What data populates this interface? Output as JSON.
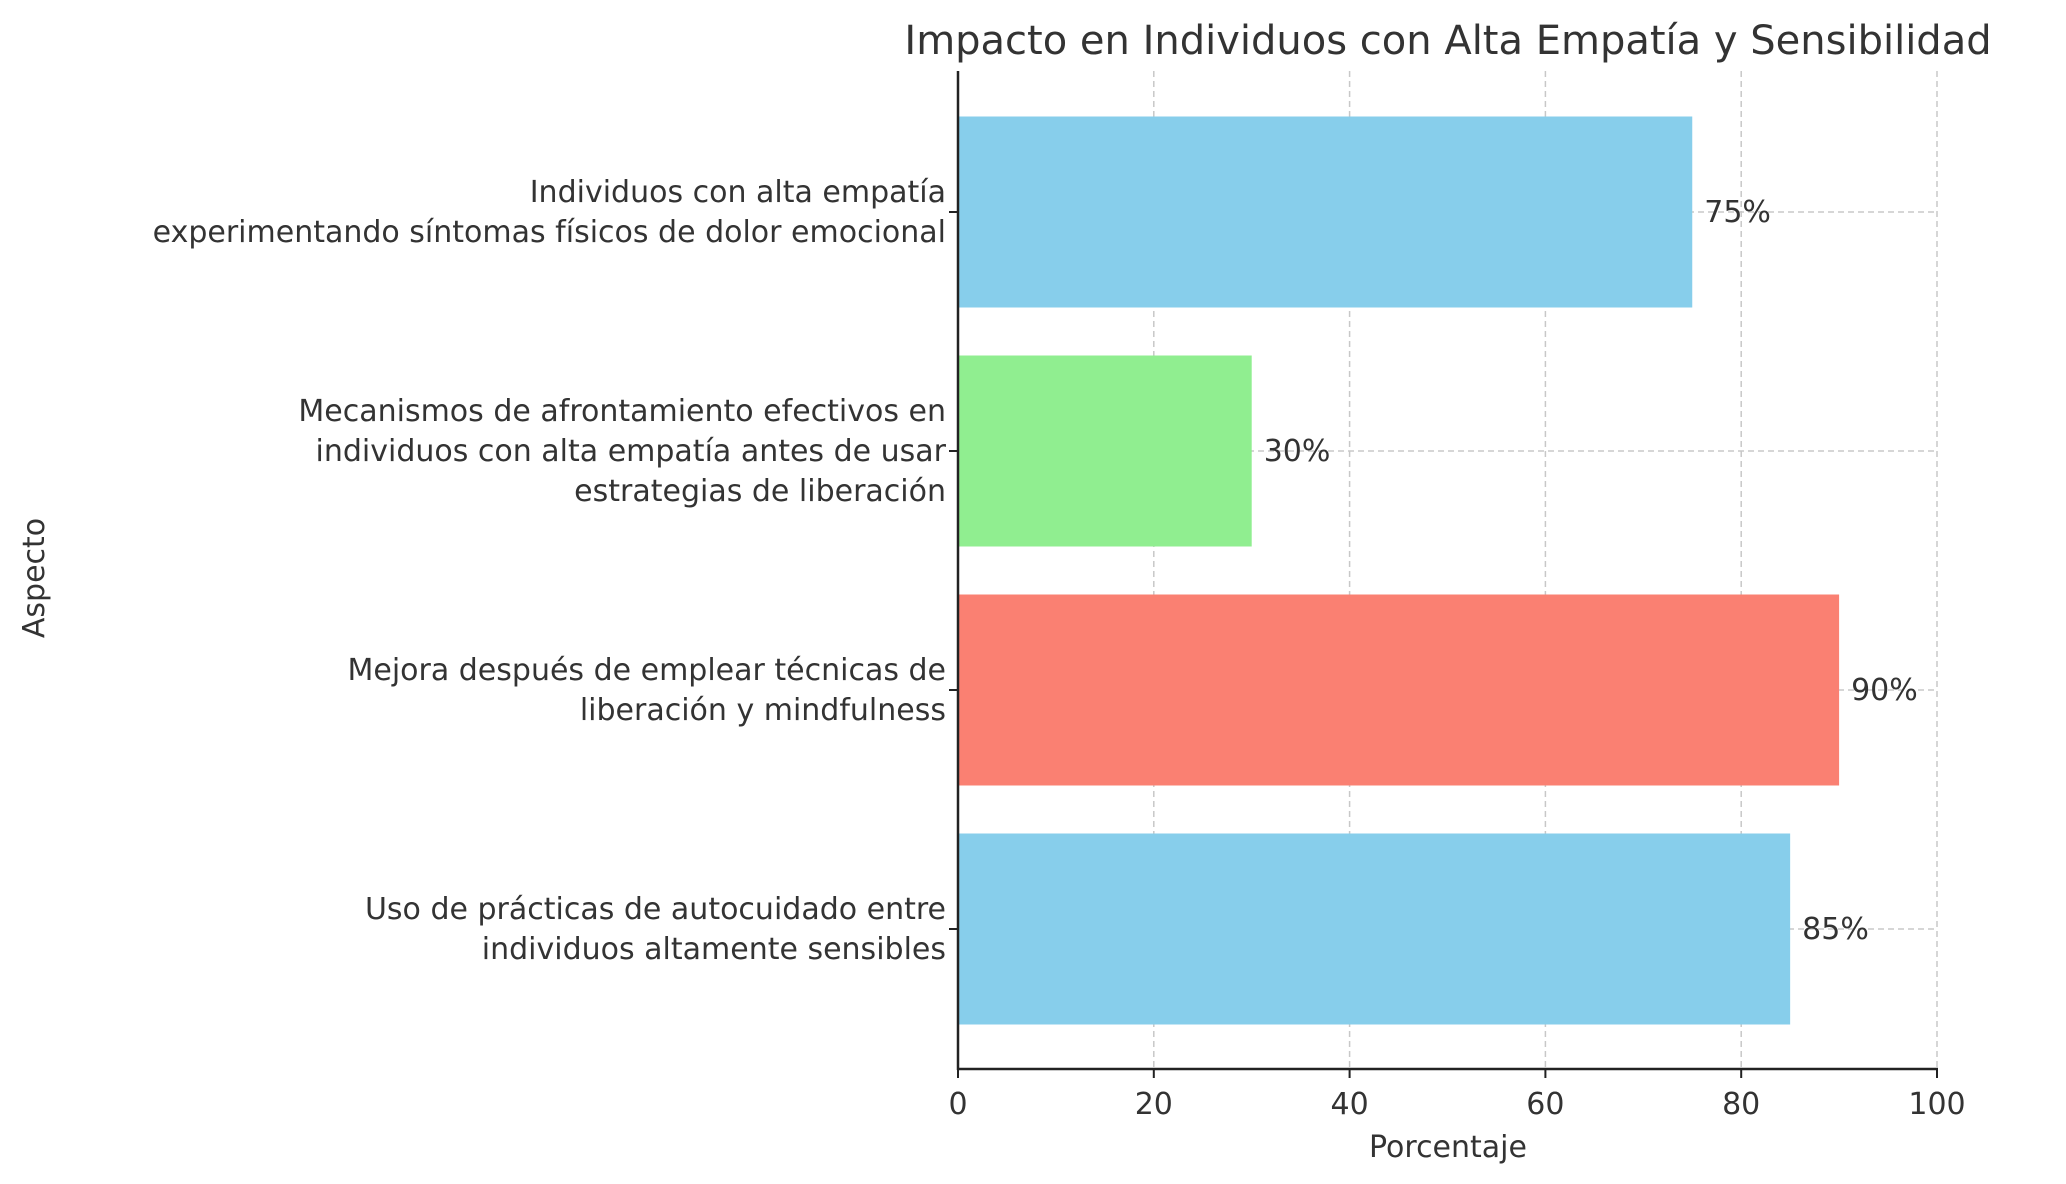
{
  "chart_data": {
    "type": "bar",
    "orientation": "horizontal",
    "title": "Impacto en Individuos con Alta Empatía y Sensibilidad",
    "xlabel": "Porcentaje",
    "ylabel": "Aspecto",
    "xlim": [
      0,
      100
    ],
    "xticks": [
      "0",
      "20",
      "40",
      "60",
      "80",
      "100"
    ],
    "grid": true,
    "categories": [
      [
        "Uso de prácticas de autocuidado entre",
        "individuos altamente sensibles"
      ],
      [
        "Mejora después de emplear técnicas de",
        "liberación y mindfulness"
      ],
      [
        "Mecanismos de afrontamiento efectivos en",
        "individuos con alta empatía antes de usar",
        "estrategias de liberación"
      ],
      [
        "Individuos con alta empatía",
        "experimentando síntomas físicos de dolor emocional"
      ]
    ],
    "values": [
      85,
      90,
      30,
      75
    ],
    "data_labels": [
      "85%",
      "90%",
      "30%",
      "75%"
    ],
    "colors": [
      "#87ceeb",
      "#fa8072",
      "#90ee90",
      "#87ceeb"
    ]
  }
}
